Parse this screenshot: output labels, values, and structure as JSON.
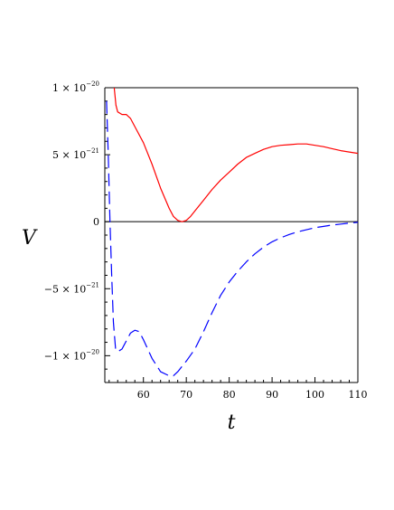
{
  "chart_data": {
    "type": "line",
    "xlabel": "t",
    "ylabel": "V",
    "xlim": [
      51,
      110
    ],
    "ylim": [
      -1.2e-20,
      1e-20
    ],
    "grid": false,
    "x_ticks": [
      {
        "value": 60,
        "label": "60"
      },
      {
        "value": 70,
        "label": "70"
      },
      {
        "value": 80,
        "label": "80"
      },
      {
        "value": 90,
        "label": "90"
      },
      {
        "value": 100,
        "label": "100"
      },
      {
        "value": 110,
        "label": "110"
      }
    ],
    "y_ticks": [
      {
        "value": 1e-20,
        "mant": "1 × 10",
        "exp": "−20"
      },
      {
        "value": 5e-21,
        "mant": "5 × 10",
        "exp": "−21"
      },
      {
        "value": 0,
        "mant": "0",
        "exp": ""
      },
      {
        "value": -5e-21,
        "mant": "−5 × 10",
        "exp": "−21"
      },
      {
        "value": -1e-20,
        "mant": "−1 × 10",
        "exp": "−20"
      }
    ],
    "series": [
      {
        "color": "#ff0000",
        "style": "solid",
        "points": [
          [
            53.2,
            1e-20
          ],
          [
            53.6,
            8.7e-21
          ],
          [
            54,
            8.2e-21
          ],
          [
            55,
            8e-21
          ],
          [
            56,
            8e-21
          ],
          [
            57,
            7.7e-21
          ],
          [
            58,
            7.1e-21
          ],
          [
            60,
            5.9e-21
          ],
          [
            62,
            4.3e-21
          ],
          [
            64,
            2.5e-21
          ],
          [
            66,
            1e-21
          ],
          [
            67,
            4e-22
          ],
          [
            68,
            1e-22
          ],
          [
            69,
            0
          ],
          [
            70,
            1e-22
          ],
          [
            71,
            4e-22
          ],
          [
            72,
            8e-22
          ],
          [
            74,
            1.6e-21
          ],
          [
            76,
            2.4e-21
          ],
          [
            78,
            3.1e-21
          ],
          [
            80,
            3.7e-21
          ],
          [
            82,
            4.3e-21
          ],
          [
            84,
            4.8e-21
          ],
          [
            86,
            5.1e-21
          ],
          [
            88,
            5.4e-21
          ],
          [
            90,
            5.6e-21
          ],
          [
            92,
            5.7e-21
          ],
          [
            94,
            5.75e-21
          ],
          [
            96,
            5.8e-21
          ],
          [
            98,
            5.8e-21
          ],
          [
            100,
            5.7e-21
          ],
          [
            102,
            5.6e-21
          ],
          [
            104,
            5.45e-21
          ],
          [
            106,
            5.3e-21
          ],
          [
            108,
            5.2e-21
          ],
          [
            110,
            5.1e-21
          ]
        ]
      },
      {
        "color": "#0000ff",
        "style": "dashed",
        "points": [
          [
            51.4,
            9e-21
          ],
          [
            51.8,
            5e-21
          ],
          [
            52.2,
            0
          ],
          [
            52.6,
            -4e-21
          ],
          [
            53,
            -7.5e-21
          ],
          [
            53.5,
            -9.5e-21
          ],
          [
            54,
            -9.7e-21
          ],
          [
            55,
            -9.5e-21
          ],
          [
            56,
            -8.9e-21
          ],
          [
            57,
            -8.3e-21
          ],
          [
            58,
            -8.1e-21
          ],
          [
            59,
            -8.2e-21
          ],
          [
            60,
            -8.8e-21
          ],
          [
            62,
            -1.02e-20
          ],
          [
            64,
            -1.12e-20
          ],
          [
            66,
            -1.15e-20
          ],
          [
            67,
            -1.15e-20
          ],
          [
            68,
            -1.12e-20
          ],
          [
            70,
            -1.04e-20
          ],
          [
            72,
            -9.5e-21
          ],
          [
            74,
            -8.2e-21
          ],
          [
            76,
            -6.8e-21
          ],
          [
            78,
            -5.5e-21
          ],
          [
            80,
            -4.5e-21
          ],
          [
            82,
            -3.7e-21
          ],
          [
            84,
            -3e-21
          ],
          [
            86,
            -2.4e-21
          ],
          [
            88,
            -1.9e-21
          ],
          [
            90,
            -1.5e-21
          ],
          [
            92,
            -1.2e-21
          ],
          [
            94,
            -9.5e-22
          ],
          [
            96,
            -7.5e-22
          ],
          [
            98,
            -6e-22
          ],
          [
            100,
            -4.5e-22
          ],
          [
            102,
            -3.5e-22
          ],
          [
            104,
            -2.5e-22
          ],
          [
            106,
            -1.8e-22
          ],
          [
            108,
            -1e-22
          ],
          [
            110,
            -5e-23
          ]
        ]
      }
    ]
  }
}
